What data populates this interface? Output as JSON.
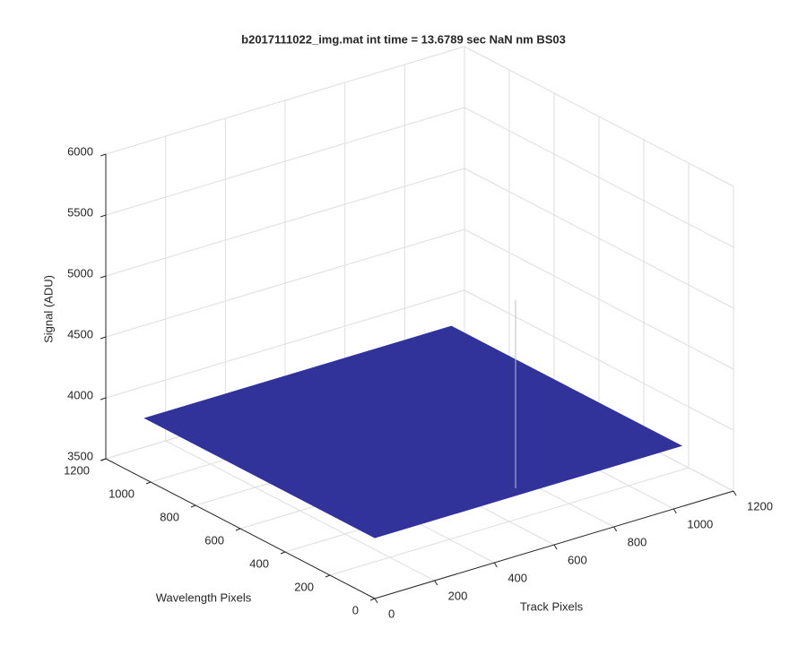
{
  "chart_data": {
    "type": "surface3d",
    "title": "b2017111022_img.mat int time = 13.6789 sec  NaN nm BS03",
    "xlabel": "Track Pixels",
    "ylabel": "Wavelength Pixels",
    "zlabel": "Signal (ADU)",
    "xlim": [
      0,
      1200
    ],
    "ylim": [
      0,
      1200
    ],
    "zlim": [
      3500,
      6000
    ],
    "xticks": [
      0,
      200,
      400,
      600,
      800,
      1000,
      1200
    ],
    "yticks": [
      0,
      200,
      400,
      600,
      800,
      1000,
      1200
    ],
    "zticks": [
      3500,
      4000,
      4500,
      5000,
      5500,
      6000
    ],
    "grid": true,
    "surface": {
      "color": "#31339a",
      "x": [
        1,
        1024
      ],
      "y": [
        1,
        1024
      ],
      "z": [
        [
          4000,
          4000
        ],
        [
          4000,
          4000
        ]
      ]
    },
    "spike": {
      "color": "#bfbfbf",
      "x": 573,
      "y": 136,
      "z": 5400
    }
  }
}
